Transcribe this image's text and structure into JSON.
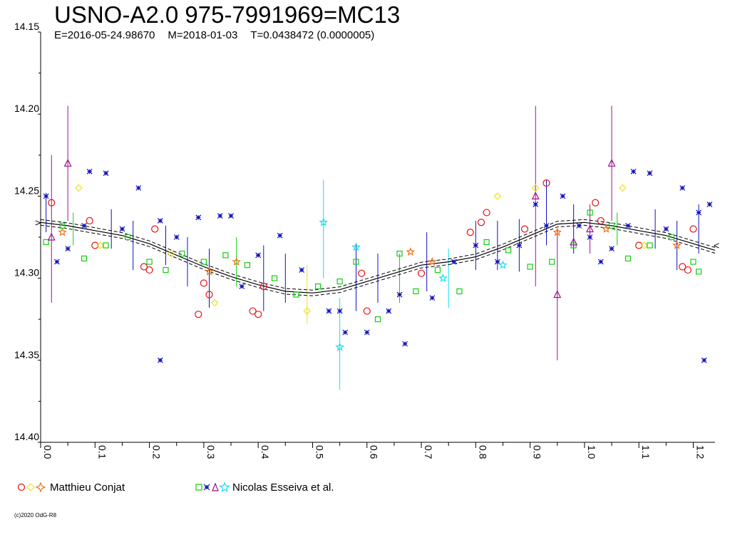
{
  "header": {
    "title": "USNO-A2.0 975-7991969=MC13",
    "epoch": "E=2016-05-24.98670",
    "mean": "M=2018-01-03",
    "period": "T=0.0438472 (0.0000005)"
  },
  "legend": {
    "group1_label": "Matthieu Conjat",
    "group2_label": "Nicolas Esseiva et al."
  },
  "footer": {
    "copyright": "(c)2020 OdG-R8"
  },
  "colors": {
    "conjat_circle": "#e81010",
    "conjat_diamond": "#f0e020",
    "conjat_star": "#f07010",
    "esseiva_square": "#10d010",
    "esseiva_cross": "#1010c0",
    "esseiva_triangle": "#a01090",
    "esseiva_star": "#10e0f0"
  },
  "chart_data": {
    "type": "scatter",
    "xlim": [
      0.0,
      1.24
    ],
    "ylim": [
      14.15,
      14.4
    ],
    "y_inverted": true,
    "x_ticks": [
      "0.0",
      "0.1",
      "0.2",
      "0.3",
      "0.4",
      "0.5",
      "0.6",
      "0.7",
      "0.8",
      "0.9",
      "1.0",
      "1.1",
      "1.2"
    ],
    "y_ticks": [
      "14.15",
      "14.20",
      "14.25",
      "14.30",
      "14.35",
      "14.40"
    ],
    "grid": false,
    "legend_position": "bottom-left",
    "model_curve": {
      "phase": [
        0.0,
        0.05,
        0.1,
        0.15,
        0.2,
        0.25,
        0.3,
        0.35,
        0.4,
        0.45,
        0.5,
        0.55,
        0.6,
        0.65,
        0.7,
        0.75,
        0.8,
        0.85,
        0.9,
        0.95,
        1.0,
        1.05,
        1.1,
        1.15,
        1.2,
        1.24
      ],
      "mag": [
        14.266,
        14.268,
        14.271,
        14.274,
        14.279,
        14.286,
        14.293,
        14.299,
        14.304,
        14.308,
        14.309,
        14.307,
        14.302,
        14.297,
        14.292,
        14.29,
        14.287,
        14.281,
        14.274,
        14.267,
        14.266,
        14.268,
        14.271,
        14.274,
        14.279,
        14.283
      ]
    },
    "series": [
      {
        "name": "Matthieu Conjat",
        "marker": "circle",
        "points": [
          [
            0.02,
            14.254
          ],
          [
            0.09,
            14.265
          ],
          [
            0.1,
            14.28
          ],
          [
            0.19,
            14.293
          ],
          [
            0.2,
            14.295
          ],
          [
            0.21,
            14.27
          ],
          [
            0.29,
            14.322
          ],
          [
            0.3,
            14.303
          ],
          [
            0.31,
            14.31
          ],
          [
            0.39,
            14.32
          ],
          [
            0.4,
            14.322
          ],
          [
            0.41,
            14.305
          ],
          [
            0.59,
            14.297
          ],
          [
            0.6,
            14.32
          ],
          [
            0.7,
            14.297
          ],
          [
            0.79,
            14.272
          ],
          [
            0.81,
            14.266
          ],
          [
            0.82,
            14.26
          ],
          [
            0.89,
            14.27
          ],
          [
            0.93,
            14.242
          ],
          [
            1.02,
            14.254
          ],
          [
            1.03,
            14.265
          ],
          [
            1.1,
            14.28
          ],
          [
            1.18,
            14.293
          ],
          [
            1.19,
            14.295
          ],
          [
            1.2,
            14.27
          ]
        ]
      },
      {
        "name": "Matthieu Conjat",
        "marker": "diamond",
        "points": [
          [
            0.07,
            14.245
          ],
          [
            0.11,
            14.28
          ],
          [
            0.24,
            14.285
          ],
          [
            0.32,
            14.315
          ],
          [
            0.49,
            14.32
          ],
          [
            0.84,
            14.25
          ],
          [
            0.91,
            14.245
          ],
          [
            1.07,
            14.245
          ],
          [
            1.11,
            14.28
          ]
        ]
      },
      {
        "name": "Matthieu Conjat",
        "marker": "star",
        "points": [
          [
            0.04,
            14.272
          ],
          [
            0.31,
            14.296
          ],
          [
            0.36,
            14.29
          ],
          [
            0.68,
            14.284
          ],
          [
            0.72,
            14.29
          ],
          [
            0.95,
            14.272
          ],
          [
            1.04,
            14.27
          ],
          [
            1.17,
            14.28
          ]
        ]
      },
      {
        "name": "Nicolas Esseiva et al.",
        "marker": "square",
        "points": [
          [
            0.01,
            14.278
          ],
          [
            0.04,
            14.268
          ],
          [
            0.08,
            14.288
          ],
          [
            0.12,
            14.28
          ],
          [
            0.16,
            14.275
          ],
          [
            0.2,
            14.29
          ],
          [
            0.23,
            14.295
          ],
          [
            0.26,
            14.285
          ],
          [
            0.3,
            14.29
          ],
          [
            0.34,
            14.286
          ],
          [
            0.38,
            14.292
          ],
          [
            0.43,
            14.3
          ],
          [
            0.47,
            14.31
          ],
          [
            0.51,
            14.305
          ],
          [
            0.55,
            14.302
          ],
          [
            0.58,
            14.29
          ],
          [
            0.62,
            14.325
          ],
          [
            0.66,
            14.285
          ],
          [
            0.69,
            14.308
          ],
          [
            0.73,
            14.295
          ],
          [
            0.77,
            14.308
          ],
          [
            0.82,
            14.278
          ],
          [
            0.86,
            14.283
          ],
          [
            0.9,
            14.293
          ],
          [
            0.94,
            14.29
          ],
          [
            0.98,
            14.28
          ],
          [
            1.01,
            14.26
          ],
          [
            1.05,
            14.268
          ],
          [
            1.08,
            14.288
          ],
          [
            1.12,
            14.28
          ],
          [
            1.16,
            14.275
          ],
          [
            1.2,
            14.29
          ],
          [
            1.21,
            14.296
          ]
        ]
      },
      {
        "name": "Nicolas Esseiva et al.",
        "marker": "cross",
        "points": [
          [
            0.01,
            14.25
          ],
          [
            0.03,
            14.29
          ],
          [
            0.05,
            14.282
          ],
          [
            0.08,
            14.268
          ],
          [
            0.09,
            14.235
          ],
          [
            0.12,
            14.236
          ],
          [
            0.15,
            14.27
          ],
          [
            0.18,
            14.245
          ],
          [
            0.22,
            14.265
          ],
          [
            0.22,
            14.35
          ],
          [
            0.25,
            14.275
          ],
          [
            0.29,
            14.263
          ],
          [
            0.33,
            14.262
          ],
          [
            0.35,
            14.262
          ],
          [
            0.37,
            14.305
          ],
          [
            0.4,
            14.286
          ],
          [
            0.44,
            14.274
          ],
          [
            0.48,
            14.295
          ],
          [
            0.53,
            14.32
          ],
          [
            0.55,
            14.32
          ],
          [
            0.56,
            14.333
          ],
          [
            0.6,
            14.333
          ],
          [
            0.64,
            14.32
          ],
          [
            0.66,
            14.31
          ],
          [
            0.67,
            14.34
          ],
          [
            0.72,
            14.312
          ],
          [
            0.76,
            14.29
          ],
          [
            0.8,
            14.28
          ],
          [
            0.84,
            14.29
          ],
          [
            0.88,
            14.28
          ],
          [
            0.91,
            14.255
          ],
          [
            0.93,
            14.268
          ],
          [
            0.96,
            14.25
          ],
          [
            0.99,
            14.268
          ],
          [
            1.01,
            14.275
          ],
          [
            1.03,
            14.29
          ],
          [
            1.05,
            14.282
          ],
          [
            1.08,
            14.268
          ],
          [
            1.09,
            14.235
          ],
          [
            1.12,
            14.236
          ],
          [
            1.15,
            14.27
          ],
          [
            1.18,
            14.245
          ],
          [
            1.21,
            14.26
          ],
          [
            1.22,
            14.35
          ],
          [
            1.23,
            14.255
          ]
        ]
      },
      {
        "name": "Nicolas Esseiva et al.",
        "marker": "triangle",
        "points": [
          [
            0.02,
            14.275
          ],
          [
            0.05,
            14.23
          ],
          [
            0.91,
            14.25
          ],
          [
            0.95,
            14.31
          ],
          [
            0.98,
            14.278
          ],
          [
            1.01,
            14.27
          ],
          [
            1.05,
            14.23
          ]
        ]
      },
      {
        "name": "Nicolas Esseiva et al.",
        "marker": "star",
        "points": [
          [
            0.52,
            14.266
          ],
          [
            0.55,
            14.342
          ],
          [
            0.58,
            14.281
          ],
          [
            0.74,
            14.3
          ],
          [
            0.85,
            14.292
          ]
        ]
      }
    ],
    "error_bars": {
      "note": "vertical error bars, magnitude half-range",
      "items": [
        [
          0.01,
          14.26,
          0.012,
          "#1010c0"
        ],
        [
          0.02,
          14.27,
          0.045,
          "#a01090"
        ],
        [
          0.05,
          14.23,
          0.035,
          "#a01090"
        ],
        [
          0.06,
          14.27,
          0.01,
          "#10d010"
        ],
        [
          0.13,
          14.27,
          0.012,
          "#1010c0"
        ],
        [
          0.17,
          14.28,
          0.015,
          "#1010c0"
        ],
        [
          0.23,
          14.28,
          0.012,
          "#1010c0"
        ],
        [
          0.27,
          14.29,
          0.015,
          "#1010c0"
        ],
        [
          0.31,
          14.3,
          0.018,
          "#1010c0"
        ],
        [
          0.36,
          14.29,
          0.015,
          "#10d010"
        ],
        [
          0.41,
          14.3,
          0.02,
          "#1010c0"
        ],
        [
          0.45,
          14.3,
          0.015,
          "#1010c0"
        ],
        [
          0.49,
          14.31,
          0.018,
          "#f0e020"
        ],
        [
          0.52,
          14.27,
          0.03,
          "#10e0f0"
        ],
        [
          0.55,
          14.34,
          0.028,
          "#10e0f0"
        ],
        [
          0.58,
          14.3,
          0.02,
          "#1010c0"
        ],
        [
          0.62,
          14.3,
          0.015,
          "#1010c0"
        ],
        [
          0.66,
          14.3,
          0.015,
          "#10d010"
        ],
        [
          0.71,
          14.29,
          0.018,
          "#1010c0"
        ],
        [
          0.75,
          14.3,
          0.018,
          "#10e0f0"
        ],
        [
          0.8,
          14.28,
          0.015,
          "#1010c0"
        ],
        [
          0.84,
          14.28,
          0.015,
          "#1010c0"
        ],
        [
          0.88,
          14.28,
          0.016,
          "#1010c0"
        ],
        [
          0.91,
          14.25,
          0.055,
          "#a01090"
        ],
        [
          0.93,
          14.26,
          0.02,
          "#1010c0"
        ],
        [
          0.95,
          14.31,
          0.04,
          "#a01090"
        ],
        [
          0.98,
          14.27,
          0.015,
          "#1010c0"
        ],
        [
          1.01,
          14.27,
          0.015,
          "#a01090"
        ],
        [
          1.05,
          14.23,
          0.035,
          "#a01090"
        ],
        [
          1.06,
          14.27,
          0.01,
          "#10d010"
        ],
        [
          1.13,
          14.27,
          0.012,
          "#1010c0"
        ],
        [
          1.17,
          14.28,
          0.015,
          "#1010c0"
        ],
        [
          1.21,
          14.27,
          0.015,
          "#1010c0"
        ]
      ]
    }
  }
}
